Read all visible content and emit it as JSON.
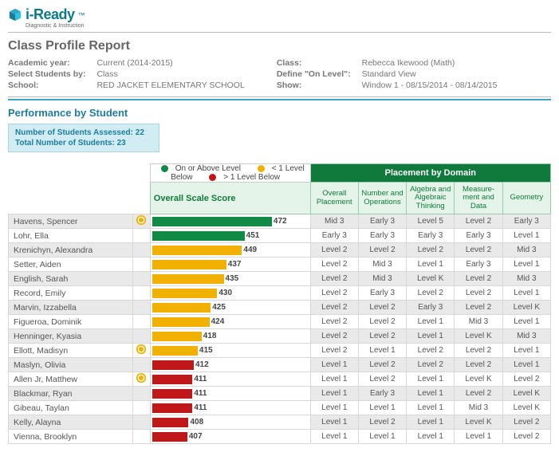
{
  "brand": {
    "name": "i-Ready",
    "tm": "™",
    "sub": "Diagnostic & Instruction"
  },
  "report_title": "Class Profile Report",
  "meta_left": {
    "ay_lbl": "Academic year:",
    "ay_val": "Current (2014-2015)",
    "sel_lbl": "Select Students by:",
    "sel_val": "Class",
    "sch_lbl": "School:",
    "sch_val": "RED JACKET ELEMENTARY SCHOOL"
  },
  "meta_right": {
    "class_lbl": "Class:",
    "class_val": "Rebecca Ikewood (Math)",
    "def_lbl": "Define \"On Level\":",
    "def_val": "Standard View",
    "show_lbl": "Show:",
    "show_val": "Window 1 - 08/15/2014 - 08/14/2015"
  },
  "section_title": "Performance by Student",
  "summary": {
    "line1": "Number of Students Assessed: 22",
    "line2": "Total Number of Students: 23"
  },
  "legend": {
    "on": "On or Above Level",
    "lt1": "< 1 Level Below",
    "gt1": "> 1 Level Below"
  },
  "headers": {
    "score": "Overall Scale Score",
    "domain_group": "Placement by Domain",
    "overall": "Overall Placement",
    "d1": "Number and Operations",
    "d2": "Algebra and Algebraic Thinking",
    "d3": "Measure-\nment and Data",
    "d4": "Geometry"
  },
  "chart": {
    "min": 380,
    "max": 500,
    "colors": {
      "green": "#108a44",
      "yellow": "#f2b100",
      "red": "#c01818"
    }
  },
  "students": [
    {
      "name": "Havens, Spencer",
      "flag": true,
      "score": 472,
      "tier": "green",
      "d": [
        "Mid 3",
        "Early 3",
        "Level 5",
        "Level 2",
        "Early 3"
      ]
    },
    {
      "name": "Lohr, Ella",
      "flag": false,
      "score": 451,
      "tier": "green",
      "d": [
        "Early 3",
        "Early 3",
        "Early 3",
        "Early 3",
        "Level 1"
      ]
    },
    {
      "name": "Krenichyn, Alexandra",
      "flag": false,
      "score": 449,
      "tier": "yellow",
      "d": [
        "Level 2",
        "Level 2",
        "Level 2",
        "Level 2",
        "Mid 3"
      ]
    },
    {
      "name": "Setter, Aiden",
      "flag": false,
      "score": 437,
      "tier": "yellow",
      "d": [
        "Level 2",
        "Mid 3",
        "Level 1",
        "Early 3",
        "Level 1"
      ]
    },
    {
      "name": "English, Sarah",
      "flag": false,
      "score": 435,
      "tier": "yellow",
      "d": [
        "Level 2",
        "Mid 3",
        "Level K",
        "Level 2",
        "Mid 3"
      ]
    },
    {
      "name": "Record, Emily",
      "flag": false,
      "score": 430,
      "tier": "yellow",
      "d": [
        "Level 2",
        "Early 3",
        "Level 2",
        "Level 2",
        "Level 1"
      ]
    },
    {
      "name": "Marvin, Izzabella",
      "flag": false,
      "score": 425,
      "tier": "yellow",
      "d": [
        "Level 2",
        "Level 2",
        "Early 3",
        "Level 2",
        "Level K"
      ]
    },
    {
      "name": "Figueroa, Dominik",
      "flag": false,
      "score": 424,
      "tier": "yellow",
      "d": [
        "Level 2",
        "Level 2",
        "Level 1",
        "Mid 3",
        "Level 1"
      ]
    },
    {
      "name": "Henninger, Kyasia",
      "flag": false,
      "score": 418,
      "tier": "yellow",
      "d": [
        "Level 2",
        "Level 2",
        "Level 1",
        "Level K",
        "Mid 3"
      ]
    },
    {
      "name": "Ellott, Madisyn",
      "flag": true,
      "score": 415,
      "tier": "yellow",
      "d": [
        "Level 2",
        "Level 1",
        "Level 2",
        "Level 2",
        "Level 1"
      ]
    },
    {
      "name": "Maslyn, Olivia",
      "flag": false,
      "score": 412,
      "tier": "red",
      "d": [
        "Level 1",
        "Level 2",
        "Level 2",
        "Level 2",
        "Level 1"
      ]
    },
    {
      "name": "Allen Jr, Matthew",
      "flag": true,
      "score": 411,
      "tier": "red",
      "d": [
        "Level 1",
        "Level 2",
        "Level 1",
        "Level K",
        "Level 2"
      ]
    },
    {
      "name": "Blackmar, Ryan",
      "flag": false,
      "score": 411,
      "tier": "red",
      "d": [
        "Level 1",
        "Early 3",
        "Level 1",
        "Level 2",
        "Level K"
      ]
    },
    {
      "name": "Gibeau, Taylan",
      "flag": false,
      "score": 411,
      "tier": "red",
      "d": [
        "Level 1",
        "Level 1",
        "Level 1",
        "Mid 3",
        "Level K"
      ]
    },
    {
      "name": "Kelly, Alayna",
      "flag": false,
      "score": 408,
      "tier": "red",
      "d": [
        "Level 1",
        "Level 2",
        "Level 1",
        "Level K",
        "Level 2"
      ]
    },
    {
      "name": "Vienna, Brooklyn",
      "flag": false,
      "score": 407,
      "tier": "red",
      "d": [
        "Level 1",
        "Level 1",
        "Level 1",
        "Level 1",
        "Level 2"
      ]
    }
  ]
}
